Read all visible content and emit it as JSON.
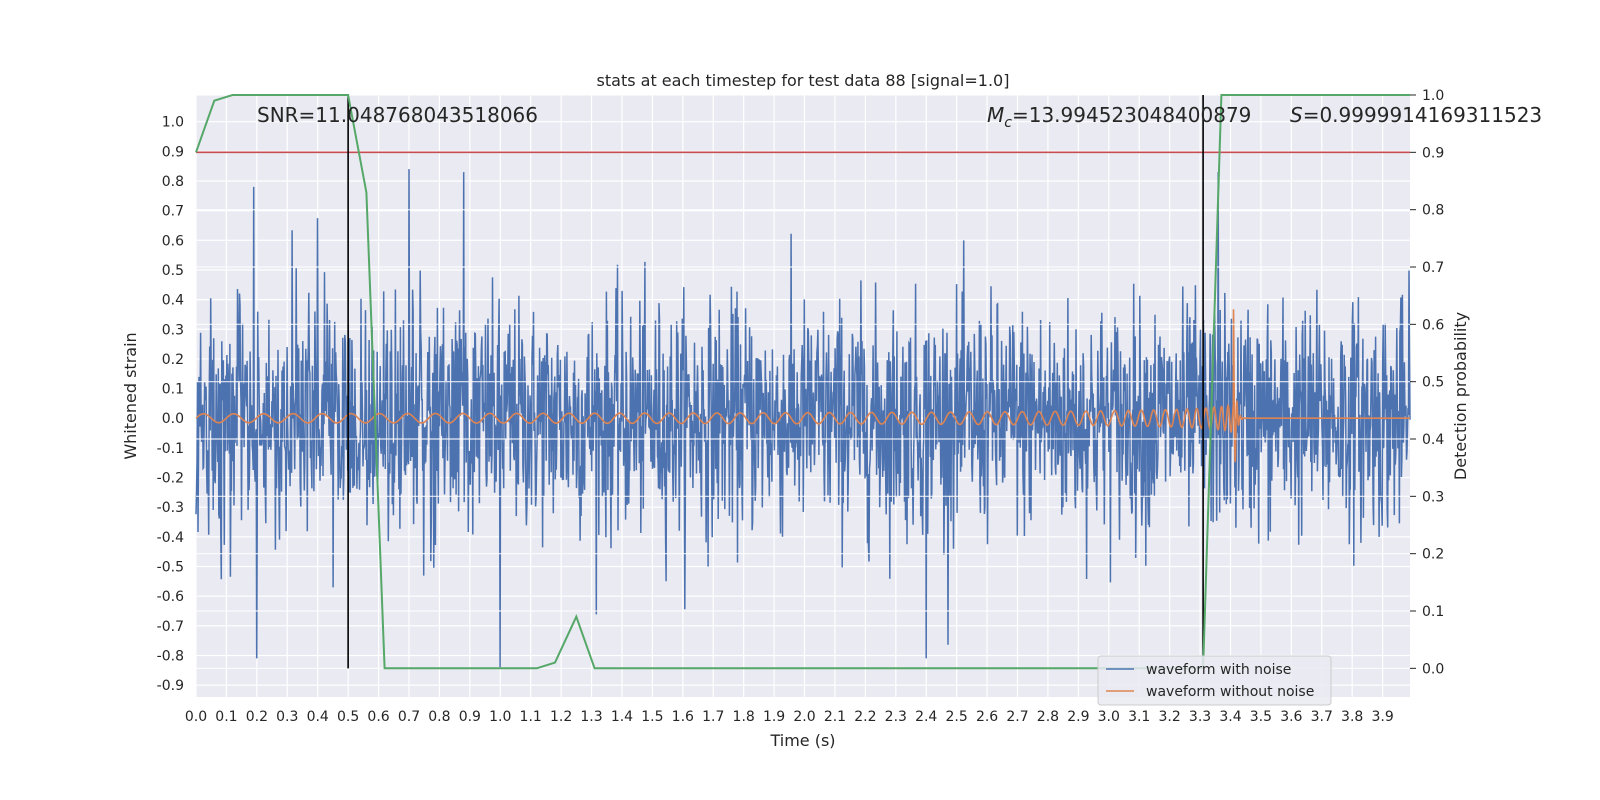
{
  "chart_data": {
    "type": "line",
    "title": "stats at each timestep for test data 88 [signal=1.0]",
    "xlabel": "Time (s)",
    "ylabel": "Whitened strain",
    "y2label": "Detection probability",
    "xlim": [
      0.0,
      3.99
    ],
    "ylim": [
      -0.94,
      1.09
    ],
    "y2lim": [
      -0.05,
      1.0
    ],
    "x_ticks": [
      "0.0",
      "0.1",
      "0.2",
      "0.3",
      "0.4",
      "0.5",
      "0.6",
      "0.7",
      "0.8",
      "0.9",
      "1.0",
      "1.1",
      "1.2",
      "1.3",
      "1.4",
      "1.5",
      "1.6",
      "1.7",
      "1.8",
      "1.9",
      "2.0",
      "2.1",
      "2.2",
      "2.3",
      "2.4",
      "2.5",
      "2.6",
      "2.7",
      "2.8",
      "2.9",
      "3.0",
      "3.1",
      "3.2",
      "3.3",
      "3.4",
      "3.5",
      "3.6",
      "3.7",
      "3.8",
      "3.9"
    ],
    "y_ticks": [
      "1.0",
      "0.9",
      "0.8",
      "0.7",
      "0.6",
      "0.5",
      "0.4",
      "0.3",
      "0.2",
      "0.1",
      "0.0",
      "-0.1",
      "-0.2",
      "-0.3",
      "-0.4",
      "-0.5",
      "-0.6",
      "-0.7",
      "-0.8",
      "-0.9"
    ],
    "y2_ticks": [
      "1.0",
      "0.9",
      "0.8",
      "0.7",
      "0.6",
      "0.5",
      "0.4",
      "0.3",
      "0.2",
      "0.1",
      "0.0"
    ],
    "grid": true,
    "legend_position": "lower-right",
    "series": [
      {
        "name": "waveform with noise",
        "axis": "left",
        "color": "#4c72b0",
        "noise_std": 0.19,
        "peaks": [
          {
            "x": 0.19,
            "y": 0.78
          },
          {
            "x": 0.7,
            "y": 0.84
          },
          {
            "x": 0.88,
            "y": 0.83
          },
          {
            "x": 0.2,
            "y": -0.81
          },
          {
            "x": 1.0,
            "y": -0.84
          },
          {
            "x": 2.4,
            "y": -0.81
          },
          {
            "x": 3.36,
            "y": 0.83
          }
        ]
      },
      {
        "name": "waveform without noise",
        "axis": "left",
        "color": "#dd8452",
        "chirp": {
          "start_amplitude": 0.015,
          "start_frequency_hz": 10,
          "merger_time": 3.41,
          "peak_amplitude": 0.37,
          "ringdown_end": 3.45
        }
      },
      {
        "name": "detection probability",
        "axis": "right",
        "color": "#55a868",
        "x": [
          0.0,
          0.06,
          0.12,
          0.5,
          0.56,
          0.62,
          1.12,
          1.18,
          1.25,
          1.31,
          3.31,
          3.37,
          3.99
        ],
        "y": [
          0.9,
          0.99,
          1.0,
          1.0,
          0.83,
          0.0,
          0.0,
          0.01,
          0.09,
          0.0,
          0.0,
          1.0,
          1.0
        ]
      }
    ],
    "threshold": {
      "axis": "right",
      "value": 0.9,
      "color": "#c44e52"
    },
    "vertical_lines": [
      {
        "x": 0.5,
        "y2_from": 0.0,
        "y2_to": 1.0,
        "color": "#000000"
      },
      {
        "x": 3.31,
        "y2_from": 0.0,
        "y2_to": 1.0,
        "color": "#000000"
      }
    ],
    "annotations": {
      "snr": "SNR=11.048768043518066",
      "mc_symbol": "M",
      "mc_subscript": "c",
      "mc_value": "=13.994523048400879",
      "s_symbol": "S",
      "s_value": "=0.9999914169311523"
    }
  }
}
